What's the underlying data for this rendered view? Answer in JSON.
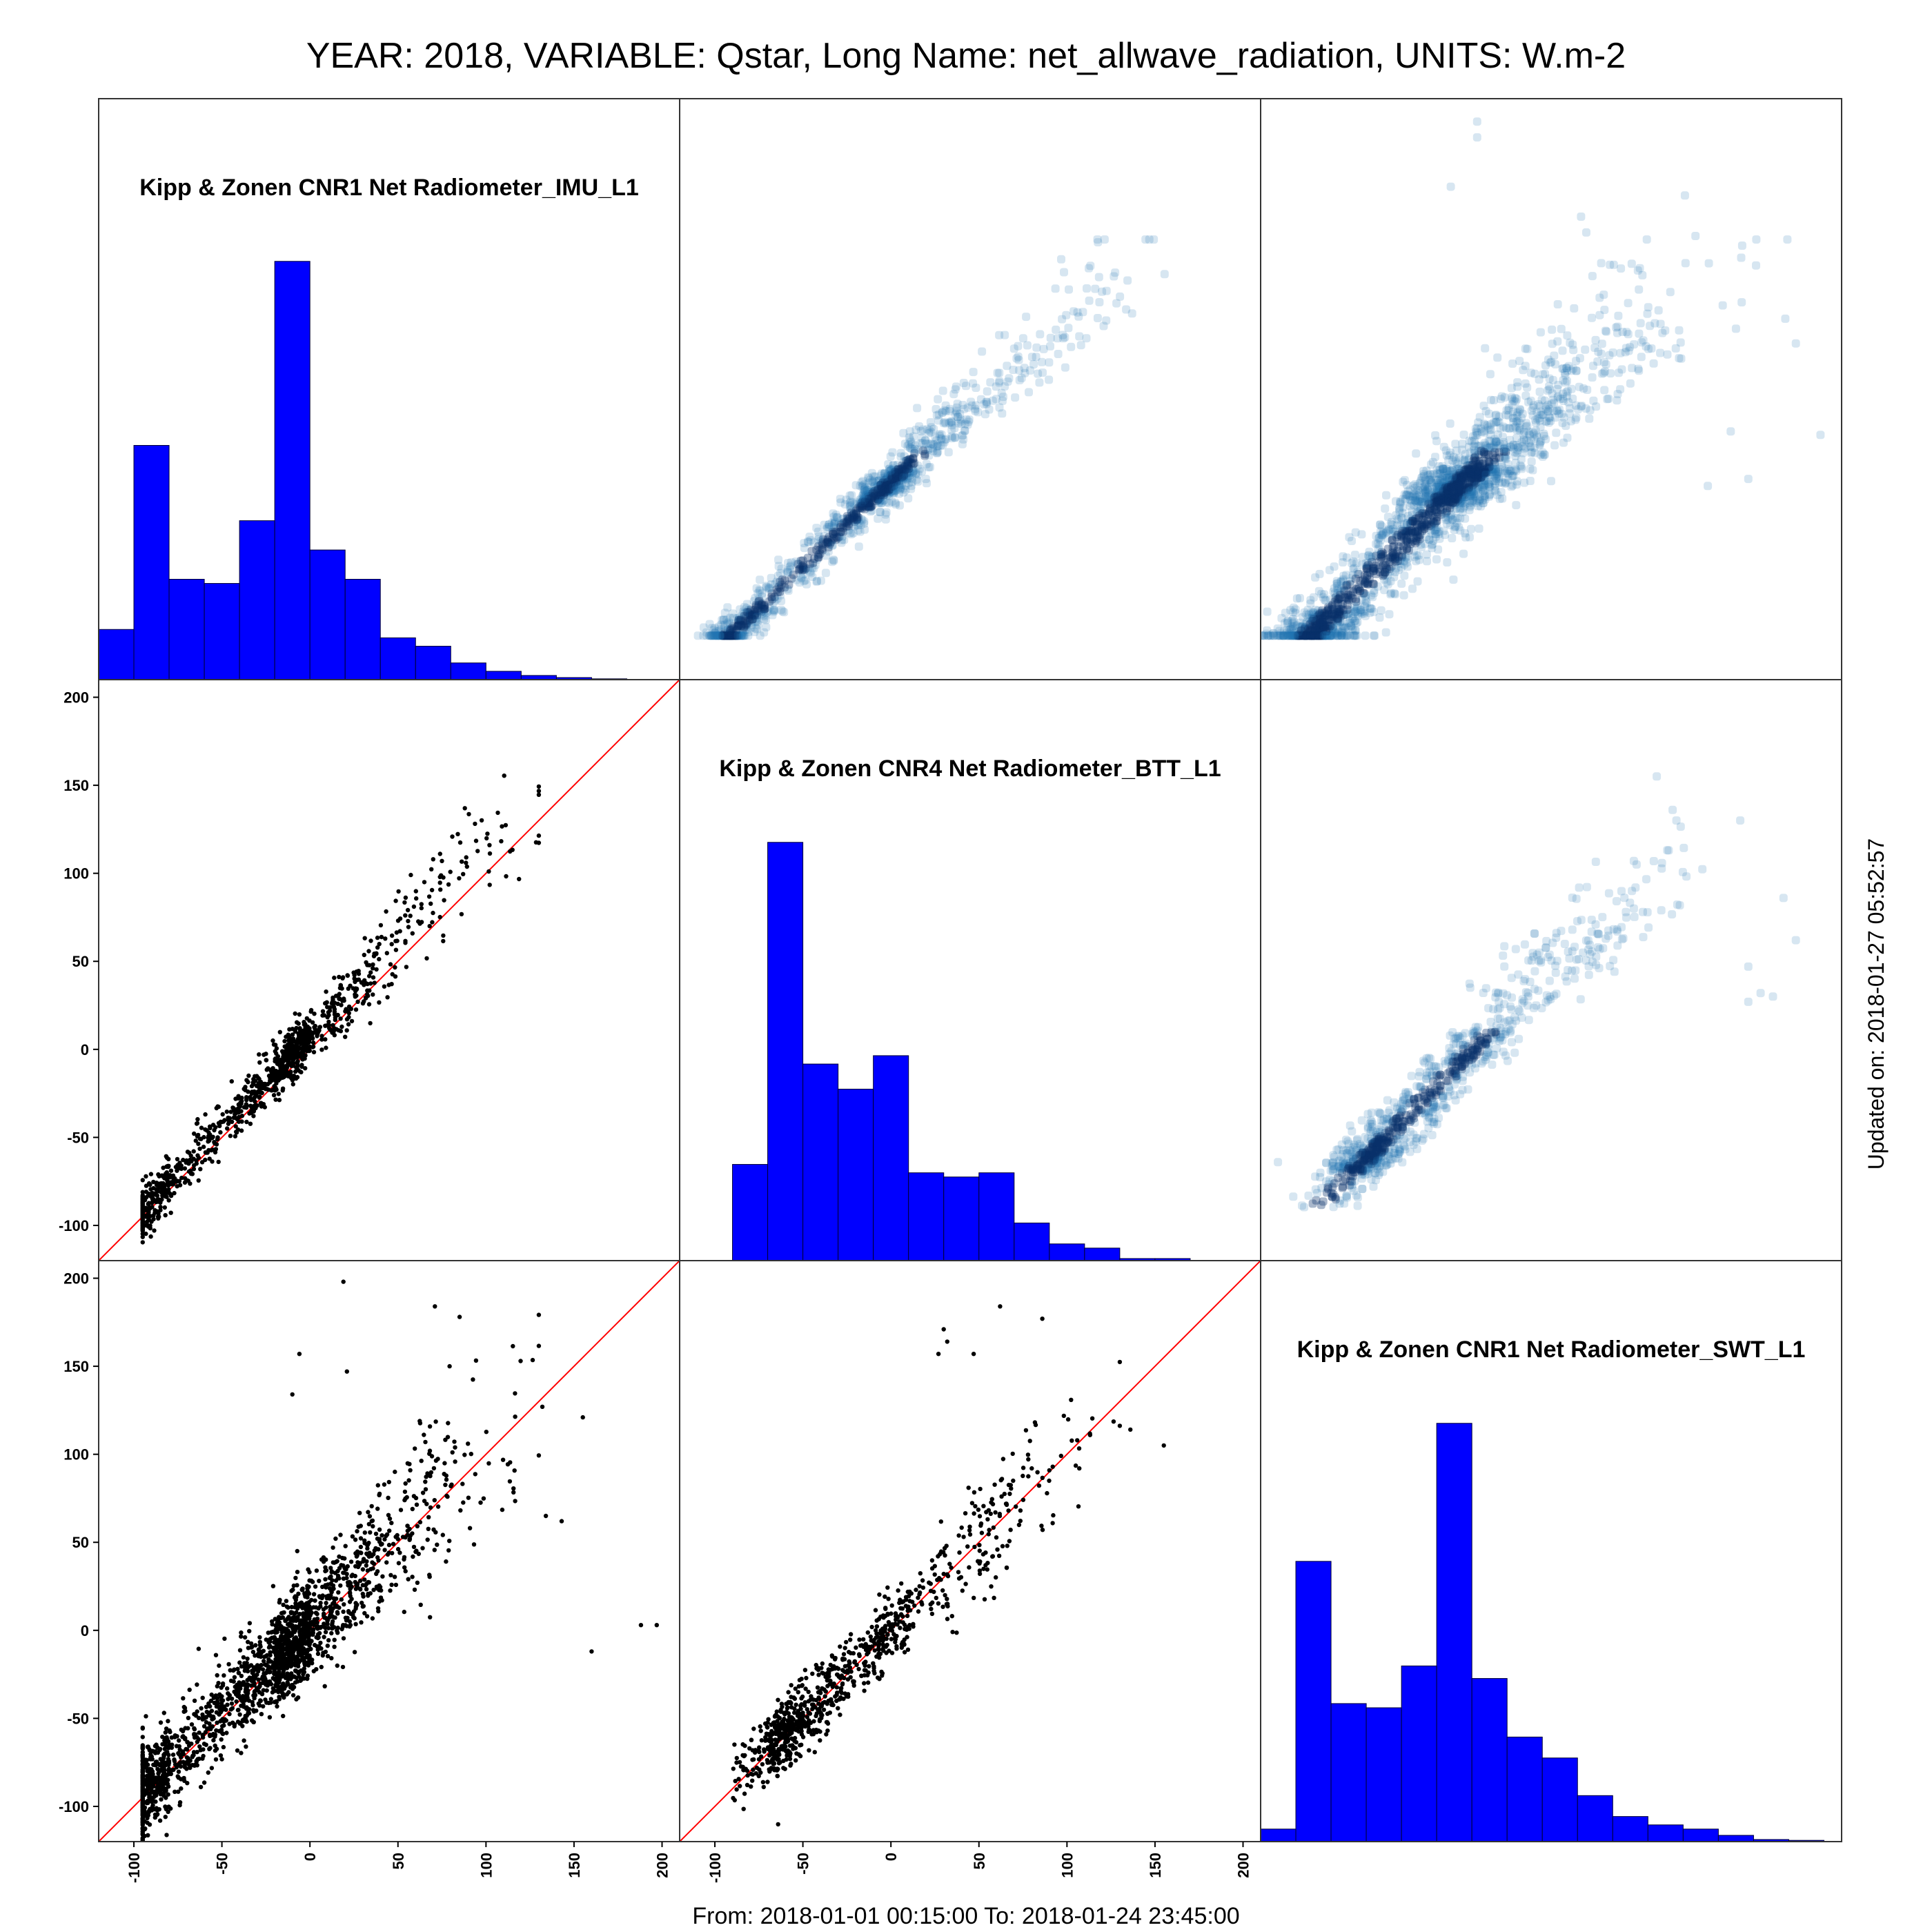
{
  "figure": {
    "title": "YEAR: 2018, VARIABLE: Qstar, Long Name: net_allwave_radiation, UNITS: W.m-2",
    "footer": "From: 2018-01-01 00:15:00 To: 2018-01-24 23:45:00",
    "side_note": "Updated on: 2018-01-27 05:52:57"
  },
  "colors": {
    "histogram_fill": "#0000ff",
    "histogram_edge": "#000033",
    "scatter_point": "#000000",
    "reference_line": "#ff0000",
    "density_point": "#1f77b4",
    "density_core": "#08306b"
  },
  "chart_data": {
    "type": "scatter-matrix",
    "axis_range": [
      -120,
      210
    ],
    "x_ticks": [
      "-100",
      "-50",
      "0",
      "50",
      "100",
      "150",
      "200"
    ],
    "y_ticks": [
      "-100",
      "-50",
      "0",
      "50",
      "100",
      "150",
      "200"
    ],
    "tick_values": [
      -100,
      -50,
      0,
      50,
      100,
      150,
      200
    ],
    "variables": [
      "Kipp & Zonen CNR1 Net Radiometer_IMU_L1",
      "Kipp & Zonen CNR4 Net Radiometer_BTT_L1",
      "Kipp & Zonen CNR1 Net Radiometer_SWT_L1"
    ],
    "histograms": [
      {
        "variable": "Kipp & Zonen CNR1 Net Radiometer_IMU_L1",
        "bin_start": -120,
        "bin_width": 20,
        "counts": [
          12,
          56,
          24,
          23,
          38,
          100,
          31,
          24,
          10,
          8,
          4,
          2,
          1,
          0.5,
          0.2
        ]
      },
      {
        "variable": "Kipp & Zonen CNR4 Net Radiometer_BTT_L1",
        "bin_start": -90,
        "bin_width": 20,
        "counts": [
          23,
          100,
          47,
          41,
          49,
          21,
          20,
          21,
          9,
          4,
          3,
          0.5,
          0.5
        ]
      },
      {
        "variable": "Kipp & Zonen CNR1 Net Radiometer_SWT_L1",
        "bin_start": -120,
        "bin_width": 20,
        "counts": [
          3,
          67,
          33,
          32,
          42,
          100,
          39,
          25,
          20,
          11,
          6,
          4,
          3,
          1.5,
          0.5,
          0.3
        ]
      }
    ],
    "scatter_pairs": [
      {
        "x_variable": "Kipp & Zonen CNR1 Net Radiometer_IMU_L1",
        "y_variable": "Kipp & Zonen CNR4 Net Radiometer_BTT_L1",
        "points": 1100,
        "slope": 1.05,
        "offset": 8,
        "spread": 7,
        "outliers": [
          [
            88,
            137
          ],
          [
            102,
            116
          ],
          [
            75,
            107
          ],
          [
            70,
            108
          ],
          [
            65,
            95
          ]
        ]
      },
      {
        "x_variable": "Kipp & Zonen CNR1 Net Radiometer_IMU_L1",
        "y_variable": "Kipp & Zonen CNR1 Net Radiometer_SWT_L1",
        "points": 2000,
        "slope": 1.0,
        "offset": 3,
        "spread": 13,
        "outliers": [
          [
            19,
            198
          ],
          [
            71,
            184
          ],
          [
            85,
            178
          ],
          [
            -6,
            157
          ],
          [
            21,
            147
          ],
          [
            -10,
            134
          ],
          [
            188,
            3
          ],
          [
            197,
            3
          ],
          [
            160,
            -12
          ],
          [
            134,
            65
          ],
          [
            143,
            62
          ],
          [
            155,
            121
          ],
          [
            132,
            127
          ]
        ]
      },
      {
        "x_variable": "Kipp & Zonen CNR4 Net Radiometer_BTT_L1",
        "y_variable": "Kipp & Zonen CNR1 Net Radiometer_SWT_L1",
        "points": 900,
        "slope": 0.97,
        "offset": 0,
        "spread": 10,
        "outliers": [
          [
            62,
            184
          ],
          [
            86,
            177
          ],
          [
            30,
            171
          ],
          [
            32,
            164
          ],
          [
            27,
            157
          ],
          [
            47,
            157
          ],
          [
            136,
            114
          ],
          [
            155,
            105
          ],
          [
            107,
            92
          ]
        ]
      }
    ]
  }
}
